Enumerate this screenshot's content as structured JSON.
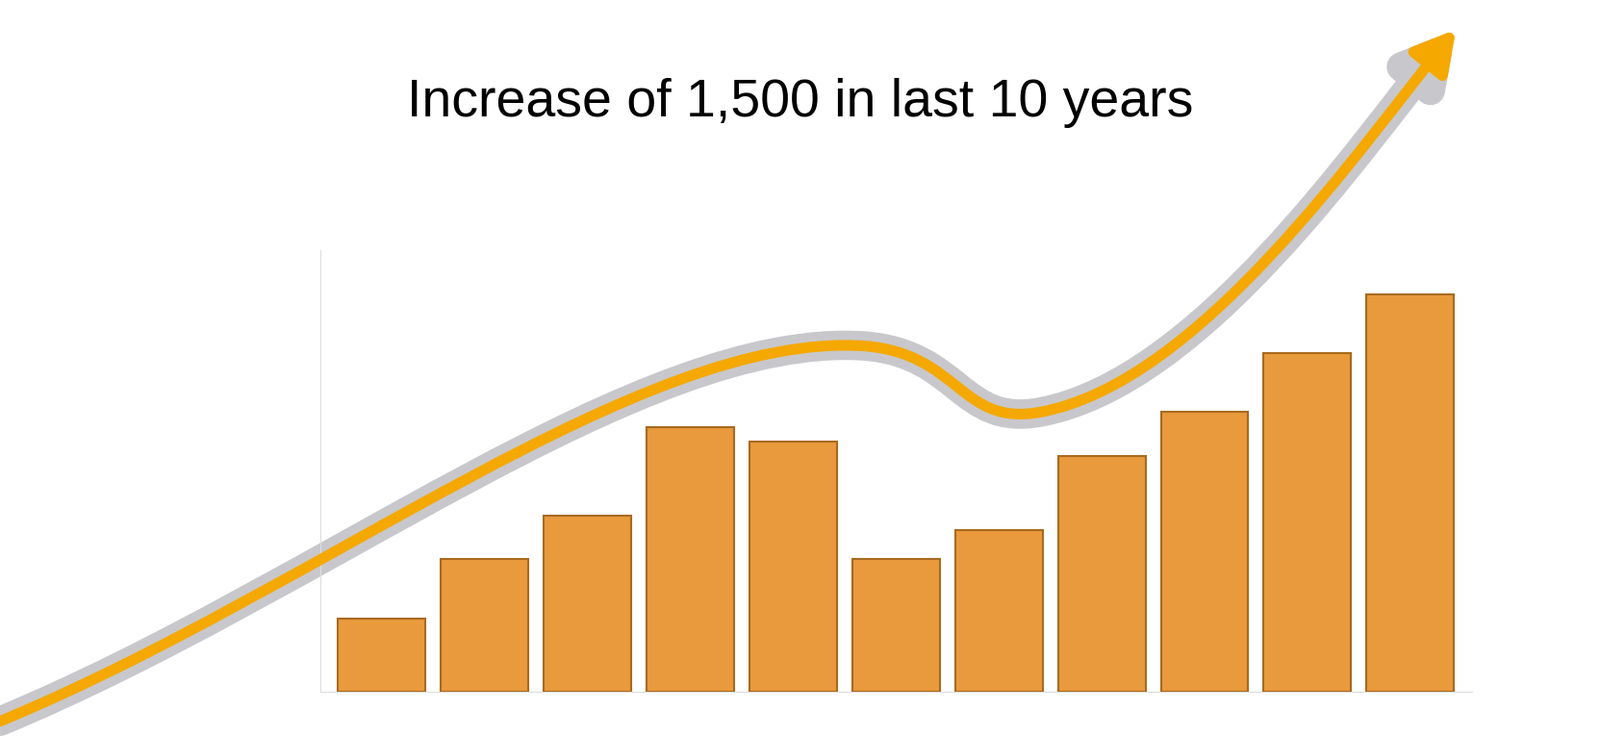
{
  "chart_data": {
    "type": "bar",
    "title": "Increase of 1,500 in last 10 years",
    "categories": [
      null,
      null,
      null,
      null,
      null,
      null,
      null,
      null,
      null,
      null,
      null
    ],
    "values": [
      10,
      18,
      24,
      36,
      34,
      18,
      22,
      32,
      38,
      46,
      54
    ],
    "color": "#e89a3c",
    "ylim": [
      0,
      60
    ],
    "tick_labels": false
  }
}
